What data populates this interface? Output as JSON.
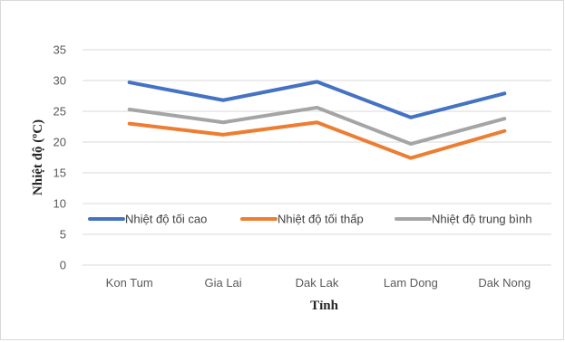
{
  "chart_data": {
    "type": "line",
    "categories": [
      "Kon Tum",
      "Gia Lai",
      "Dak Lak",
      "Lam Dong",
      "Dak Nong"
    ],
    "series": [
      {
        "name": "Nhiệt độ tối cao",
        "color": "#4472c4",
        "values": [
          29.7,
          26.8,
          29.8,
          24.0,
          27.9
        ]
      },
      {
        "name": "Nhiệt độ tối thấp",
        "color": "#ed7d31",
        "values": [
          23.0,
          21.2,
          23.2,
          17.4,
          21.8
        ]
      },
      {
        "name": "Nhiệt độ trung bình",
        "color": "#a5a5a5",
        "values": [
          25.3,
          23.2,
          25.6,
          19.7,
          23.8
        ]
      }
    ],
    "xlabel": "Tỉnh",
    "ylabel": "Nhiệt độ (ºC)",
    "ylim": [
      0,
      35
    ],
    "yticks": [
      0,
      5,
      10,
      15,
      20,
      25,
      30,
      35
    ],
    "grid": true,
    "gridline_color": "#d9d9d9",
    "legend_position": "inside-bottom"
  }
}
